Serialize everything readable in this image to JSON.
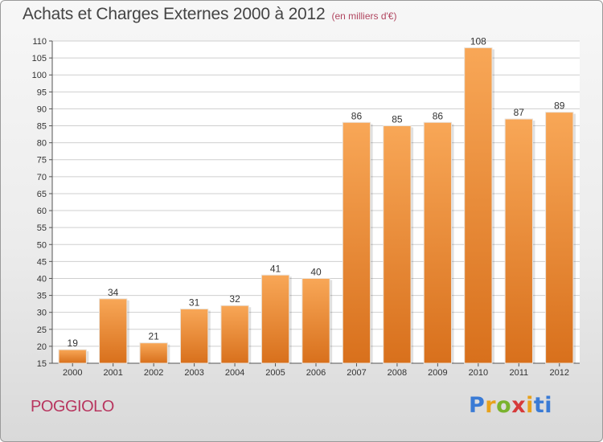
{
  "header": {
    "title": "Achats et Charges Externes 2000 à 2012",
    "subtitle": "(en milliers d'€)"
  },
  "footer": {
    "place": "POGGIOLO",
    "logo": [
      "P",
      "r",
      "o",
      "x",
      "i",
      "ti"
    ]
  },
  "colors": {
    "bar_top": "#f8a757",
    "bar_bottom": "#d8701c",
    "grid": "#cfcfcf",
    "title": "#444444",
    "subtitle": "#b0455f",
    "place": "#b8365f"
  },
  "chart_data": {
    "type": "bar",
    "title": "Achats et Charges Externes 2000 à 2012",
    "subtitle": "(en milliers d'€)",
    "categories": [
      "2000",
      "2001",
      "2002",
      "2003",
      "2004",
      "2005",
      "2006",
      "2007",
      "2008",
      "2009",
      "2010",
      "2011",
      "2012"
    ],
    "values": [
      19,
      34,
      21,
      31,
      32,
      41,
      40,
      86,
      85,
      86,
      108,
      87,
      89
    ],
    "ylim": [
      15,
      110
    ],
    "yticks": [
      15,
      20,
      25,
      30,
      35,
      40,
      45,
      50,
      55,
      60,
      65,
      70,
      75,
      80,
      85,
      90,
      95,
      100,
      105,
      110
    ],
    "grid": true,
    "legend": "none"
  }
}
